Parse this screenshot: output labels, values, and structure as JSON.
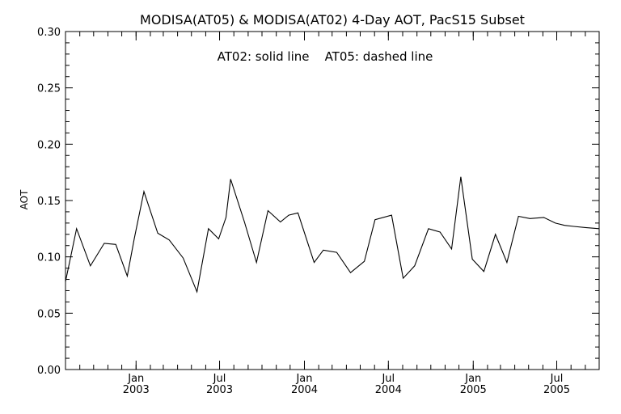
{
  "chart_data": {
    "type": "line",
    "title": "MODISA(AT05) & MODISA(AT02) 4-Day AOT, PacS15 Subset",
    "annotation": "AT02: solid line    AT05: dashed line",
    "xlabel": "",
    "ylabel": "AOT",
    "ylim": [
      0.0,
      0.3
    ],
    "yticks": [
      "0.00",
      "0.05",
      "0.10",
      "0.15",
      "0.20",
      "0.25",
      "0.30"
    ],
    "xlim": [
      "2002-08-01",
      "2005-10-01"
    ],
    "xticks": [
      {
        "date": "2003-01-01",
        "month": "Jan",
        "year": "2003"
      },
      {
        "date": "2003-07-01",
        "month": "Jul",
        "year": "2003"
      },
      {
        "date": "2004-01-01",
        "month": "Jan",
        "year": "2004"
      },
      {
        "date": "2004-07-01",
        "month": "Jul",
        "year": "2004"
      },
      {
        "date": "2005-01-01",
        "month": "Jan",
        "year": "2005"
      },
      {
        "date": "2005-07-01",
        "month": "Jul",
        "year": "2005"
      }
    ],
    "grid": false,
    "series": [
      {
        "line_style": "solid",
        "x": [
          "2002-08-01",
          "2002-08-25",
          "2002-09-24",
          "2002-10-24",
          "2002-11-18",
          "2002-12-13",
          "2002-12-28",
          "2003-01-18",
          "2003-02-17",
          "2003-03-14",
          "2003-04-13",
          "2003-05-13",
          "2003-06-07",
          "2003-06-29",
          "2003-07-15",
          "2003-07-25",
          "2003-08-24",
          "2003-09-19",
          "2003-10-14",
          "2003-11-10",
          "2003-11-28",
          "2003-12-18",
          "2004-01-22",
          "2004-02-11",
          "2004-03-11",
          "2004-04-10",
          "2004-05-10",
          "2004-06-02",
          "2004-07-08",
          "2004-08-02",
          "2004-08-27",
          "2004-09-26",
          "2004-10-21",
          "2004-11-15",
          "2004-12-05",
          "2004-12-30",
          "2005-01-24",
          "2005-02-18",
          "2005-03-15",
          "2005-04-09",
          "2005-05-04",
          "2005-06-03",
          "2005-06-28",
          "2005-07-18",
          "2005-08-07",
          "2005-09-01",
          "2005-10-01"
        ],
        "y": [
          0.078,
          0.125,
          0.092,
          0.112,
          0.111,
          0.083,
          0.116,
          0.158,
          0.121,
          0.115,
          0.099,
          0.069,
          0.125,
          0.116,
          0.135,
          0.169,
          0.131,
          0.095,
          0.141,
          0.131,
          0.137,
          0.139,
          0.095,
          0.106,
          0.104,
          0.086,
          0.096,
          0.133,
          0.137,
          0.081,
          0.092,
          0.125,
          0.122,
          0.107,
          0.171,
          0.098,
          0.087,
          0.12,
          0.095,
          0.136,
          0.134,
          0.135,
          0.13,
          0.128,
          0.127,
          0.126,
          0.125
        ]
      }
    ]
  }
}
